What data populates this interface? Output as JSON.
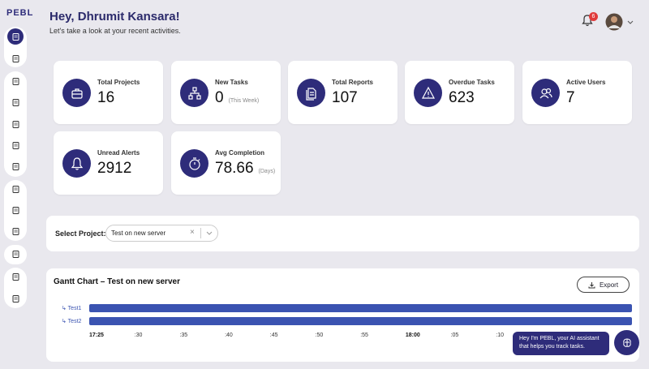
{
  "logo": "PEBL",
  "header": {
    "title": "Hey, Dhrumit Kansara!",
    "subtitle": "Let's take a look at your recent activities.",
    "notification_count": 6
  },
  "stats": [
    {
      "label": "Total Projects",
      "value": 16
    },
    {
      "label": "New Tasks",
      "value": 0,
      "note": "(This Week)"
    },
    {
      "label": "Total Reports",
      "value": 107
    },
    {
      "label": "Overdue Tasks",
      "value": 623
    },
    {
      "label": "Active Users",
      "value": 7
    },
    {
      "label": "Unread Alerts",
      "value": 2912
    },
    {
      "label": "Avg Completion",
      "value": 78.66,
      "note": "(Days)"
    }
  ],
  "project_select": {
    "label": "Select Project:",
    "value": "Test on new server",
    "clear": "×"
  },
  "gantt": {
    "title": "Gantt Chart – Test on new server",
    "export": "Export",
    "rows": [
      "↳ Test1",
      "↳ Test2"
    ],
    "time_labels": [
      "17:25",
      ":30",
      ":35",
      ":40",
      ":45",
      ":50",
      ":55",
      "18:00",
      ":05",
      ":10"
    ]
  },
  "assistant": {
    "message": "Hey I'm PEBL, your AI assistant that helps you track tasks."
  }
}
